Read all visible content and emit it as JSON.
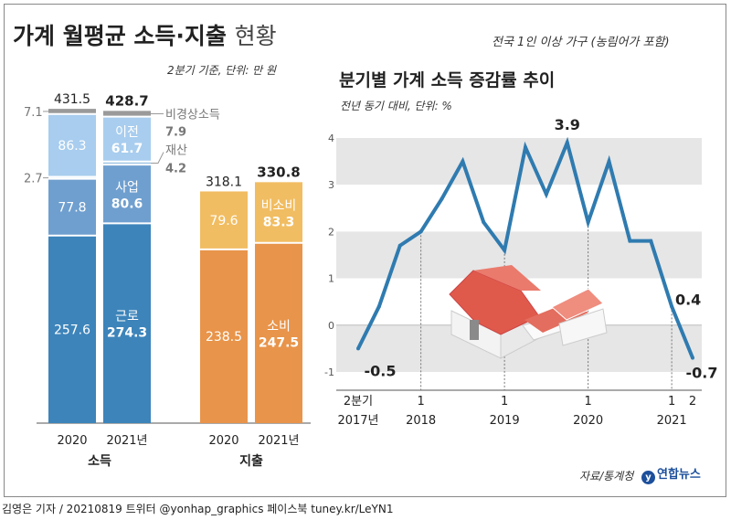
{
  "header": {
    "title_bold": "가계 월평균 소득·지출",
    "title_light": "현황",
    "scope_note": "전국 1인 이상 가구 (농림어가 포함)",
    "left_note": "2분기 기준, 단위: 만 원",
    "right_title": "분기별 가계 소득 증감률 추이",
    "right_note": "전년 동기 대비, 단위: %"
  },
  "footer": {
    "source": "자료/통계청",
    "brand": "연합뉴스",
    "credit": "김영은 기자 / 20210819   트위터 @yonhap_graphics  페이스북 tuney.kr/LeYN1"
  },
  "chart_data": [
    {
      "type": "bar",
      "stacked": true,
      "title": "가계 월평균 소득·지출 현황",
      "unit": "만 원",
      "groups": [
        {
          "name": "소득",
          "categories": [
            "2020",
            "2021년"
          ],
          "totals": [
            431.5,
            428.7
          ],
          "series": [
            {
              "name": "근로",
              "values": [
                257.6,
                274.3
              ],
              "color": "#3d84ba"
            },
            {
              "name": "사업",
              "values": [
                77.8,
                80.6
              ],
              "color": "#6f9fcf"
            },
            {
              "name": "재산",
              "values": [
                2.7,
                4.2
              ],
              "color": "#9cc2e4"
            },
            {
              "name": "이전",
              "values": [
                86.3,
                61.7
              ],
              "color": "#a8cdee"
            },
            {
              "name": "비경상소득",
              "values": [
                7.1,
                7.9
              ],
              "color": "#9a9a9a"
            }
          ]
        },
        {
          "name": "지출",
          "categories": [
            "2020",
            "2021년"
          ],
          "totals": [
            318.1,
            330.8
          ],
          "series": [
            {
              "name": "소비",
              "values": [
                238.5,
                247.5
              ],
              "color": "#e8944a"
            },
            {
              "name": "비소비",
              "values": [
                79.6,
                83.3
              ],
              "color": "#f1bd62"
            }
          ]
        }
      ]
    },
    {
      "type": "line",
      "title": "분기별 가계 소득 증감률 추이",
      "ylabel": "전년 동기 대비, 단위: %",
      "ylim": [
        -1,
        4
      ],
      "yticks": [
        -1,
        0,
        1,
        2,
        3,
        4
      ],
      "xtick_labels": [
        {
          "index": 0,
          "top": "2분기",
          "bottom": "2017년"
        },
        {
          "index": 3,
          "top": "1",
          "bottom": "2018"
        },
        {
          "index": 7,
          "top": "1",
          "bottom": "2019"
        },
        {
          "index": 11,
          "top": "1",
          "bottom": "2020"
        },
        {
          "index": 15,
          "top": "1",
          "bottom": "2021"
        },
        {
          "index": 16,
          "top": "2",
          "bottom": ""
        }
      ],
      "x": [
        "2017Q2",
        "2017Q3",
        "2017Q4",
        "2018Q1",
        "2018Q2",
        "2018Q3",
        "2018Q4",
        "2019Q1",
        "2019Q2",
        "2019Q3",
        "2019Q4",
        "2020Q1",
        "2020Q2",
        "2020Q3",
        "2020Q4",
        "2021Q1",
        "2021Q2"
      ],
      "values": [
        -0.5,
        0.4,
        1.7,
        2.0,
        2.7,
        3.5,
        2.2,
        1.6,
        3.8,
        2.8,
        3.9,
        2.2,
        3.5,
        1.8,
        1.8,
        0.4,
        -0.7
      ],
      "labels": [
        {
          "index": 0,
          "text": "-0.5"
        },
        {
          "index": 10,
          "text": "3.9"
        },
        {
          "index": 15,
          "text": "0.4"
        },
        {
          "index": 16,
          "text": "-0.7"
        }
      ],
      "color": "#2f7bb0",
      "grid": "alternating bands"
    }
  ]
}
